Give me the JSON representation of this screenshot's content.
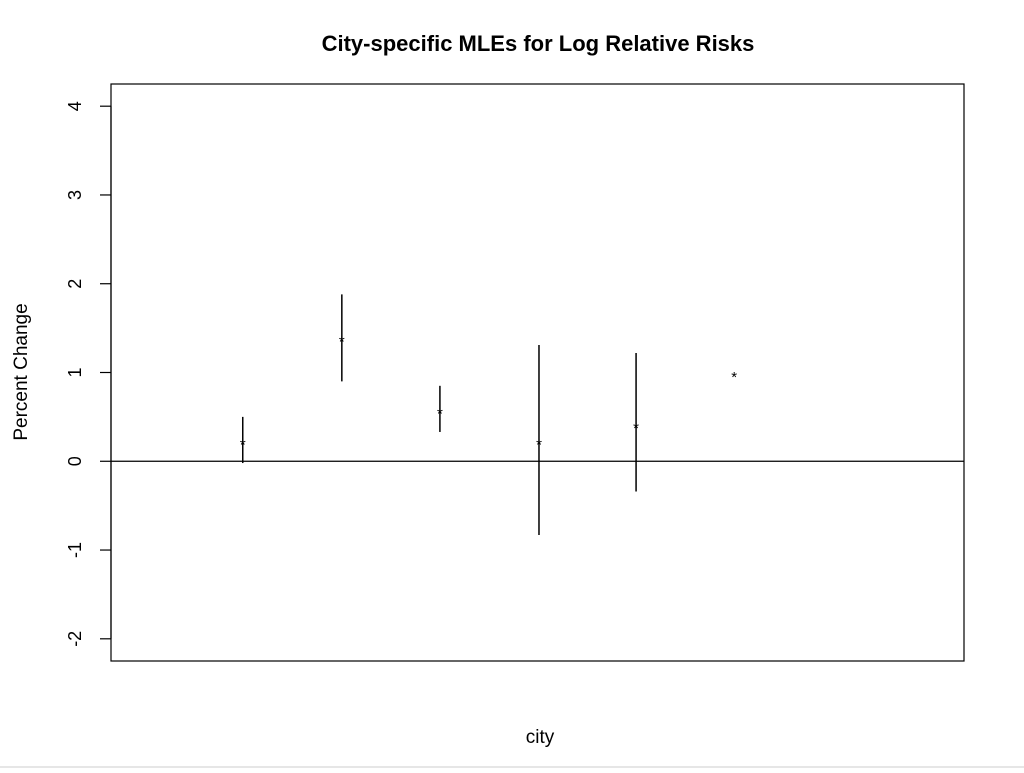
{
  "chart_data": {
    "type": "scatter",
    "title": "City-specific MLEs for Log Relative Risks",
    "xlabel": "city",
    "ylabel": "Percent Change",
    "ylim": [
      -2.25,
      4.25
    ],
    "xlim": [
      0.02,
      8.63
    ],
    "yticks": [
      -2,
      -1,
      0,
      1,
      2,
      3,
      4
    ],
    "yticks_labels": [
      "-2",
      "-1",
      "0",
      "1",
      "2",
      "3",
      "4"
    ],
    "reference_line_y": 0,
    "grid": false,
    "legend": "none",
    "marker": "*",
    "colors": {
      "line": "#000000",
      "background": "#ffffff"
    },
    "points": [
      {
        "x": 1.35,
        "y": 0.21,
        "lower": -0.02,
        "upper": 0.5
      },
      {
        "x": 2.35,
        "y": 1.37,
        "lower": 0.9,
        "upper": 1.88
      },
      {
        "x": 3.34,
        "y": 0.56,
        "lower": 0.33,
        "upper": 0.85
      },
      {
        "x": 4.34,
        "y": 0.21,
        "lower": -0.83,
        "upper": 1.31
      },
      {
        "x": 5.32,
        "y": 0.4,
        "lower": -0.34,
        "upper": 1.22
      },
      {
        "x": 6.31,
        "y": 0.97,
        "lower": null,
        "upper": null
      }
    ]
  }
}
